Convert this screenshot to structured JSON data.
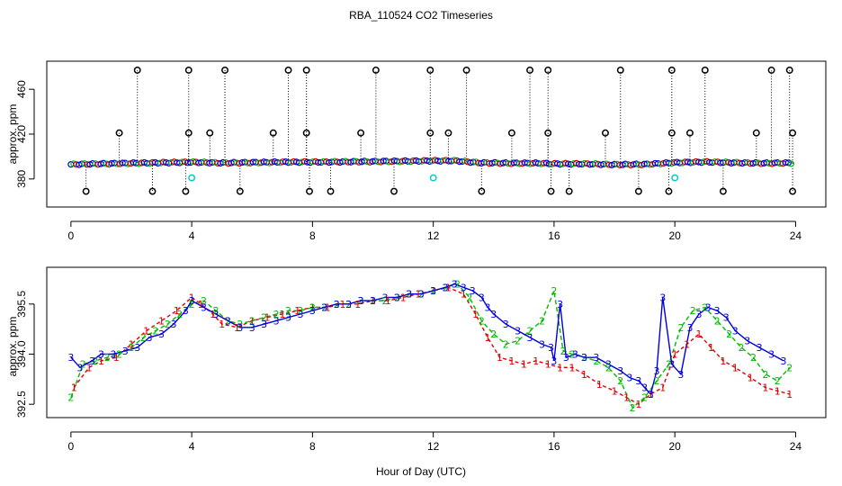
{
  "chart_data": [
    {
      "type": "scatter",
      "title": "RBA_110524  CO2 Timeseries",
      "xlabel": "",
      "ylabel": "approx. ppm",
      "xlim": [
        -0.8,
        25
      ],
      "ylim": [
        355,
        485
      ],
      "xticks": [
        0,
        4,
        8,
        12,
        16,
        20,
        24
      ],
      "yticks": [
        380,
        420,
        460
      ],
      "baseline": {
        "x": [
          0,
          1,
          2,
          3,
          4,
          5,
          6,
          7,
          8,
          9,
          10,
          11,
          12,
          12.7,
          13.5,
          14.5,
          15.5,
          16,
          17,
          18,
          19,
          20,
          21,
          22,
          23,
          23.8
        ],
        "y": [
          393,
          393.5,
          394,
          394.5,
          395,
          394.3,
          394.6,
          395,
          395.1,
          395.3,
          395.5,
          395.8,
          396.2,
          396.3,
          394.5,
          394,
          394,
          393.5,
          393.5,
          392.8,
          393,
          394.5,
          395.2,
          394.5,
          394,
          394.2
        ]
      },
      "spikes_high": [
        2.2,
        3.9,
        5.1,
        7.2,
        7.8,
        10.1,
        11.9,
        13.1,
        15.2,
        15.8,
        18.2,
        19.9,
        21.0,
        23.2,
        23.8
      ],
      "spikes_mid": [
        1.6,
        3.9,
        4.6,
        6.7,
        7.8,
        9.6,
        11.9,
        12.5,
        14.6,
        15.8,
        17.7,
        19.9,
        20.5,
        22.7,
        23.9
      ],
      "spikes_low": [
        0.5,
        2.7,
        3.8,
        5.6,
        7.9,
        8.6,
        10.7,
        13.6,
        15.9,
        16.5,
        18.8,
        19.8,
        21.6,
        23.9
      ],
      "cyan_points": [
        {
          "x": 4.0,
          "y": 381
        },
        {
          "x": 12.0,
          "y": 381
        },
        {
          "x": 20.0,
          "y": 381
        }
      ]
    },
    {
      "type": "line",
      "title": "",
      "xlabel": "Hour of Day (UTC)",
      "ylabel": "approx. ppm",
      "xlim": [
        -0.8,
        25
      ],
      "ylim": [
        392.1,
        396.6
      ],
      "xticks": [
        0,
        4,
        8,
        12,
        16,
        20,
        24
      ],
      "yticks": [
        392.5,
        394.0,
        395.5
      ],
      "series": [
        {
          "name": "1",
          "color": "#dd0000",
          "dash": "4,3",
          "x": [
            0.1,
            0.6,
            1.0,
            1.5,
            2.0,
            2.5,
            3.0,
            3.5,
            4.0,
            4.3,
            4.7,
            5.0,
            5.5,
            6.0,
            6.5,
            7.0,
            7.5,
            8.0,
            8.5,
            9.0,
            9.5,
            10.0,
            10.5,
            11.0,
            11.5,
            12.0,
            12.5,
            13.0,
            13.4,
            13.8,
            14.2,
            14.6,
            15.0,
            15.4,
            15.8,
            16.2,
            16.6,
            17.0,
            17.5,
            18.0,
            18.4,
            18.8,
            19.2,
            19.6,
            20.0,
            20.4,
            20.8,
            21.2,
            21.6,
            22.0,
            22.5,
            23.0,
            23.4,
            23.8
          ],
          "y": [
            393.0,
            393.6,
            393.8,
            393.9,
            394.3,
            394.7,
            395.0,
            395.3,
            395.7,
            395.5,
            395.2,
            394.9,
            394.8,
            395.0,
            395.1,
            395.2,
            395.3,
            395.4,
            395.4,
            395.5,
            395.5,
            395.6,
            395.6,
            395.7,
            395.8,
            395.9,
            396.0,
            395.8,
            395.2,
            394.5,
            393.9,
            393.8,
            393.7,
            393.8,
            393.7,
            393.6,
            393.6,
            393.4,
            393.1,
            392.9,
            392.7,
            392.5,
            392.8,
            393.0,
            394.0,
            394.3,
            394.6,
            394.2,
            393.8,
            393.6,
            393.3,
            393.0,
            392.9,
            392.8
          ]
        },
        {
          "name": "2",
          "color": "#00bb00",
          "dash": "5,3",
          "x": [
            0.0,
            0.4,
            0.8,
            1.2,
            1.6,
            2.0,
            2.4,
            2.8,
            3.2,
            3.6,
            4.0,
            4.4,
            4.8,
            5.2,
            5.6,
            6.0,
            6.4,
            6.8,
            7.2,
            7.6,
            8.0,
            8.4,
            8.8,
            9.2,
            9.6,
            10.0,
            10.4,
            10.8,
            11.2,
            11.6,
            12.0,
            12.4,
            12.8,
            13.2,
            13.6,
            14.0,
            14.4,
            14.8,
            15.2,
            15.6,
            16.0,
            16.3,
            16.6,
            17.0,
            17.4,
            17.8,
            18.2,
            18.6,
            19.0,
            19.4,
            19.8,
            20.2,
            20.6,
            21.0,
            21.4,
            21.8,
            22.2,
            22.6,
            23.0,
            23.4,
            23.8
          ],
          "y": [
            392.7,
            393.7,
            393.8,
            393.9,
            394.0,
            394.2,
            394.5,
            394.7,
            394.9,
            395.2,
            395.5,
            395.6,
            395.3,
            395.0,
            394.9,
            395.0,
            395.1,
            395.2,
            395.3,
            395.3,
            395.4,
            395.4,
            395.5,
            395.5,
            395.6,
            395.6,
            395.6,
            395.7,
            395.8,
            395.8,
            395.9,
            396.0,
            396.1,
            395.7,
            395.0,
            394.6,
            394.3,
            394.4,
            394.7,
            395.0,
            395.9,
            394.1,
            394.0,
            393.9,
            393.8,
            393.6,
            393.2,
            392.4,
            392.7,
            393.2,
            393.7,
            394.8,
            395.3,
            395.4,
            395.0,
            394.6,
            394.2,
            393.9,
            393.4,
            393.2,
            393.6
          ]
        },
        {
          "name": "3",
          "color": "#0000dd",
          "dash": "",
          "x": [
            0.0,
            0.3,
            0.7,
            1.0,
            1.4,
            1.8,
            2.2,
            2.6,
            3.0,
            3.4,
            3.8,
            4.0,
            4.4,
            4.8,
            5.2,
            5.6,
            6.0,
            6.4,
            6.8,
            7.2,
            7.6,
            8.0,
            8.4,
            8.8,
            9.2,
            9.6,
            10.0,
            10.4,
            10.8,
            11.2,
            11.6,
            12.0,
            12.4,
            12.7,
            13.0,
            13.3,
            13.6,
            13.8,
            14.0,
            14.4,
            14.8,
            15.2,
            15.6,
            15.9,
            16.0,
            16.2,
            16.4,
            16.7,
            17.0,
            17.4,
            17.8,
            18.2,
            18.5,
            18.8,
            19.0,
            19.2,
            19.4,
            19.6,
            19.9,
            20.2,
            20.5,
            20.8,
            21.1,
            21.4,
            21.7,
            22.0,
            22.4,
            22.8,
            23.2,
            23.6
          ],
          "y": [
            393.9,
            393.6,
            393.8,
            394.0,
            394.0,
            394.1,
            394.2,
            394.5,
            394.6,
            394.9,
            395.3,
            395.6,
            395.4,
            395.2,
            395.0,
            394.8,
            394.8,
            394.9,
            395.0,
            395.1,
            395.2,
            395.3,
            395.4,
            395.5,
            395.5,
            395.6,
            395.6,
            395.7,
            395.7,
            395.8,
            395.8,
            395.9,
            396.0,
            396.1,
            396.0,
            395.9,
            395.7,
            395.4,
            395.2,
            394.9,
            394.7,
            394.5,
            394.3,
            394.2,
            393.8,
            395.5,
            393.9,
            394.0,
            393.9,
            393.9,
            393.7,
            393.5,
            393.3,
            393.2,
            393.0,
            392.8,
            393.5,
            395.7,
            393.7,
            393.4,
            394.8,
            395.2,
            395.4,
            395.3,
            395.1,
            394.7,
            394.4,
            394.2,
            394.0,
            393.8
          ]
        }
      ]
    }
  ]
}
